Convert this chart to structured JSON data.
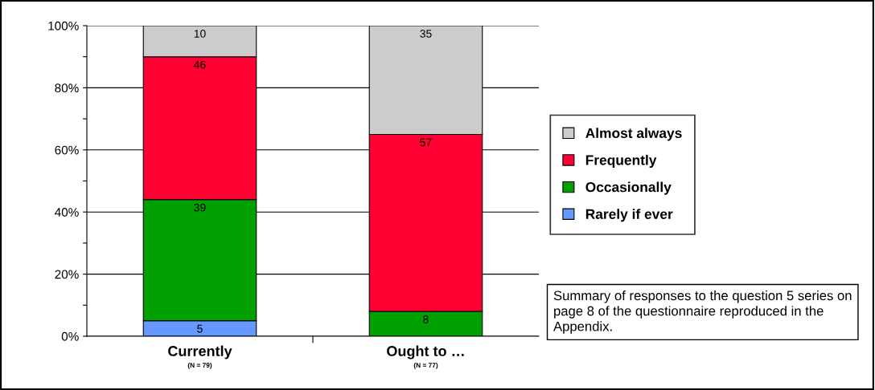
{
  "chart_data": {
    "type": "bar",
    "stacked": true,
    "categories": [
      "Currently\n(N = 79)",
      "Ought to …\n(N = 77)"
    ],
    "series": [
      {
        "name": "Rarely if ever",
        "color": "#6699ff",
        "values": [
          5,
          null
        ],
        "value_labels": [
          "5",
          null
        ]
      },
      {
        "name": "Occasionally",
        "color": "#00a000",
        "values": [
          39,
          8
        ],
        "value_labels": [
          "39",
          "8"
        ]
      },
      {
        "name": "Frequently",
        "color": "#ff0033",
        "values": [
          46,
          57
        ],
        "value_labels": [
          "46",
          "57"
        ]
      },
      {
        "name": "Almost always",
        "color": "#cccccc",
        "values": [
          10,
          35
        ],
        "value_labels": [
          "10",
          "35"
        ]
      }
    ],
    "ylim": [
      0,
      100
    ],
    "yticks": [
      {
        "value": 0,
        "label": "0%"
      },
      {
        "value": 10,
        "label": null
      },
      {
        "value": 20,
        "label": "20%"
      },
      {
        "value": 30,
        "label": null
      },
      {
        "value": 40,
        "label": "40%"
      },
      {
        "value": 50,
        "label": null
      },
      {
        "value": 60,
        "label": "60%"
      },
      {
        "value": 70,
        "label": null
      },
      {
        "value": 80,
        "label": "80%"
      },
      {
        "value": 90,
        "label": null
      },
      {
        "value": 100,
        "label": "100%"
      }
    ],
    "grid": "y",
    "legend": "right",
    "annotations": [
      "Summary of responses to the question 5 series on page 8 of the questionnaire reproduced in the Appendix."
    ]
  }
}
